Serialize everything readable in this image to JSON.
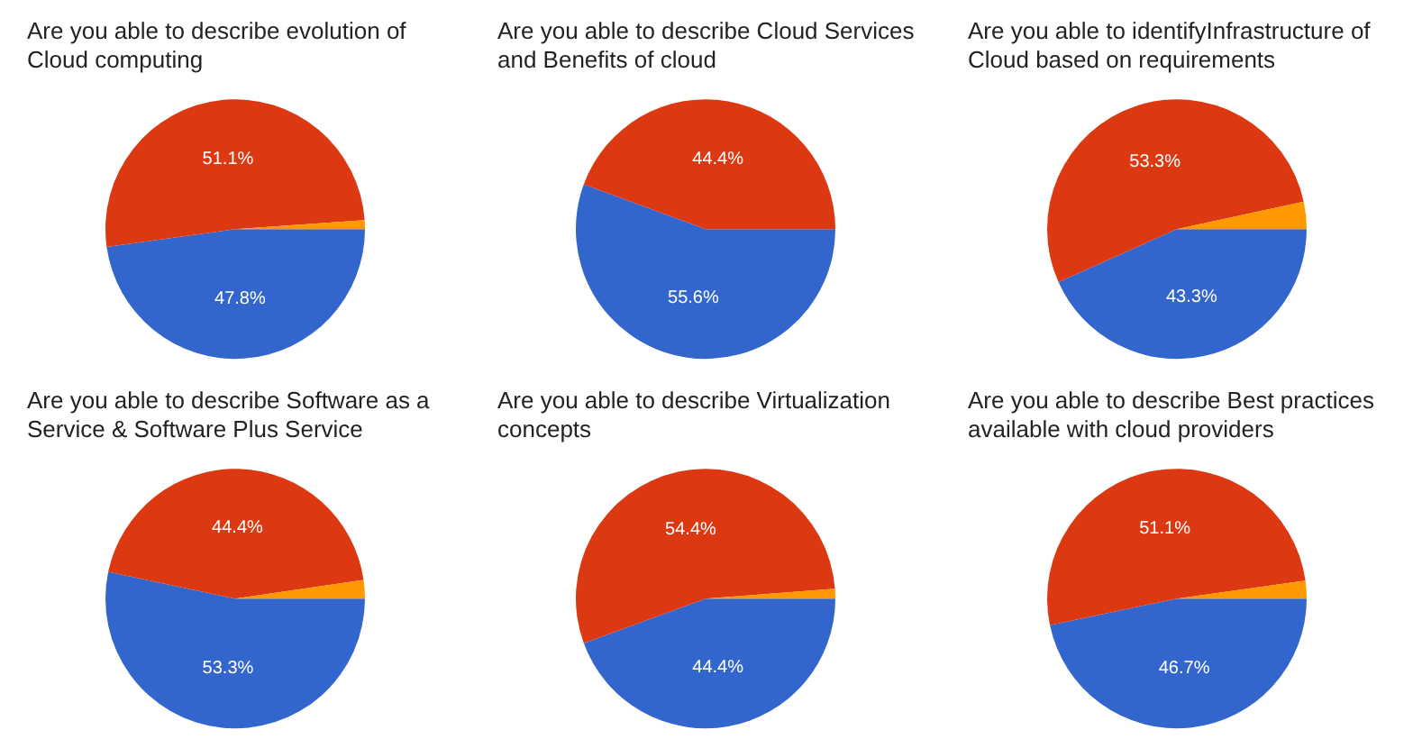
{
  "chart_data": [
    {
      "type": "pie",
      "title": "Are you able to describe evolution of Cloud computing",
      "categories": [
        null,
        null,
        null
      ],
      "values": [
        47.8,
        51.1,
        1.1
      ],
      "colors": [
        "#3366cc",
        "#dc3912",
        "#ff9900"
      ],
      "value_labels": [
        "47.8%",
        "51.1%",
        null
      ]
    },
    {
      "type": "pie",
      "title": "Are you able to describe Cloud Services and Benefits of cloud",
      "categories": [
        null,
        null
      ],
      "values": [
        55.6,
        44.4
      ],
      "colors": [
        "#3366cc",
        "#dc3912"
      ],
      "value_labels": [
        "55.6%",
        "44.4%"
      ]
    },
    {
      "type": "pie",
      "title": "Are you able to identifyInfrastructure of Cloud based on requirements",
      "categories": [
        null,
        null,
        null
      ],
      "values": [
        43.3,
        53.3,
        3.4
      ],
      "colors": [
        "#3366cc",
        "#dc3912",
        "#ff9900"
      ],
      "value_labels": [
        "43.3%",
        "53.3%",
        null
      ]
    },
    {
      "type": "pie",
      "title": "Are you able to describe Software as a Service & Software Plus Service",
      "categories": [
        null,
        null,
        null
      ],
      "values": [
        53.3,
        44.4,
        2.3
      ],
      "colors": [
        "#3366cc",
        "#dc3912",
        "#ff9900"
      ],
      "value_labels": [
        "53.3%",
        "44.4%",
        null
      ]
    },
    {
      "type": "pie",
      "title": "Are you able to describe Virtualization concepts",
      "categories": [
        null,
        null,
        null
      ],
      "values": [
        44.4,
        54.4,
        1.2
      ],
      "colors": [
        "#3366cc",
        "#dc3912",
        "#ff9900"
      ],
      "value_labels": [
        "44.4%",
        "54.4%",
        null
      ]
    },
    {
      "type": "pie",
      "title": "Are you able to describe Best practices available with cloud providers",
      "categories": [
        null,
        null,
        null
      ],
      "values": [
        46.7,
        51.1,
        2.2
      ],
      "colors": [
        "#3366cc",
        "#dc3912",
        "#ff9900"
      ],
      "value_labels": [
        "46.7%",
        "51.1%",
        null
      ]
    }
  ]
}
